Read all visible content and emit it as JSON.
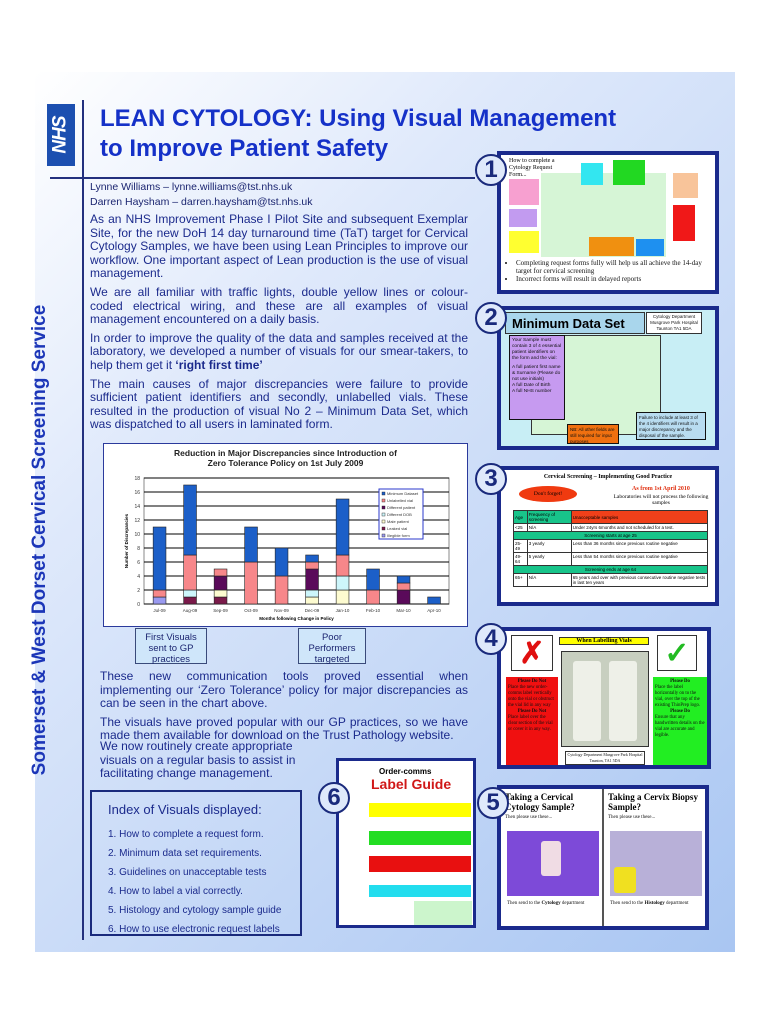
{
  "logo": "NHS",
  "side_title": "Somerset & West Dorset Cervical Screening Service",
  "title_line1": "LEAN CYTOLOGY:  Using Visual Management",
  "title_line2": "to Improve Patient Safety",
  "authors": [
    "Lynne Williams    – lynne.williams@tst.nhs.uk",
    "Darren Haysham – darren.haysham@tst.nhs.uk"
  ],
  "paragraphs": [
    "As an NHS Improvement Phase I Pilot Site and subsequent Exemplar Site, for the new DoH 14 day turnaround time (TaT) target for Cervical Cytology Samples, we have been using Lean Principles to improve our workflow. One important aspect of Lean production is the use of visual management.",
    "We are all familiar with traffic lights, double yellow lines or colour-coded electrical wiring, and these are all  examples of visual management encountered on a daily basis.",
    "In order to improve the quality of the data and samples received at the laboratory,  we developed a number of visuals for our smear-takers, to help them get it ",
    "The main causes of major discrepancies were failure to provide sufficient patient identifiers and secondly, unlabelled vials. These resulted in the production of visual No 2 – Minimum Data Set, which was dispatched to all users in laminated form."
  ],
  "emphasis": "‘right first time’",
  "chart_data": {
    "type": "bar",
    "stacked": true,
    "title": "Reduction in Major Discrepancies since Introduction of Zero Tolerance Policy on 1st July 2009",
    "xlabel": "Months following Change in Policy",
    "ylabel": "Number of Discrepancies",
    "ylim": [
      0,
      18
    ],
    "yticks": [
      0,
      2,
      4,
      6,
      8,
      10,
      12,
      14,
      16,
      18
    ],
    "grid": true,
    "legend_placement": "top-right",
    "categories": [
      "Jul-09",
      "Aug-09",
      "Sep-09",
      "Oct-09",
      "Nov-09",
      "Dec-09",
      "Jan-10",
      "Feb-10",
      "Mar-10",
      "Apr-10"
    ],
    "series": [
      {
        "name": "Illegible form",
        "color": "#9a9af0",
        "values": [
          1,
          0,
          0,
          0,
          0,
          0,
          0,
          0,
          0,
          0
        ]
      },
      {
        "name": "Leaked vial",
        "color": "#7a1a4a",
        "values": [
          0,
          1,
          1,
          0,
          0,
          0,
          0,
          0,
          0,
          0
        ]
      },
      {
        "name": "Male patient",
        "color": "#fdfbd0",
        "values": [
          0,
          0,
          1,
          0,
          0,
          1,
          2,
          0,
          0,
          0
        ]
      },
      {
        "name": "Different DOB",
        "color": "#cdf6fb",
        "values": [
          0,
          1,
          0,
          0,
          0,
          1,
          2,
          0,
          0,
          0
        ]
      },
      {
        "name": "Different patient",
        "color": "#5a0a5a",
        "values": [
          0,
          0,
          2,
          0,
          0,
          3,
          0,
          0,
          2,
          0
        ]
      },
      {
        "name": "Unlabelled vial",
        "color": "#f7878a",
        "values": [
          1,
          5,
          1,
          6,
          4,
          1,
          3,
          2,
          1,
          0
        ]
      },
      {
        "name": "Minimum Dataset",
        "color": "#1c5fc8",
        "values": [
          9,
          10,
          0,
          5,
          4,
          1,
          8,
          3,
          1,
          1
        ]
      }
    ],
    "legend_order": [
      "Minimum Dataset",
      "Unlabelled vial",
      "Different patient",
      "Different DOB",
      "Male patient",
      "Leaked vial",
      "Illegible form"
    ]
  },
  "callouts": {
    "first": "First Visuals sent to GP practices",
    "poor": "Poor Performers targeted"
  },
  "paragraphs2": [
    "These new communication tools proved essential when implementing our ‘Zero Tolerance’ policy  for major discrepancies as can be seen in the chart above.",
    "The visuals have proved popular with our GP practices, so we have made them available for download on the Trust Pathology website.",
    "We now routinely create appropriate visuals on a regular basis to assist in facilitating change management."
  ],
  "index": {
    "title": "Index of Visuals displayed:",
    "items": [
      "1.  How to complete a request form.",
      "2.  Minimum data set requirements.",
      "3.  Guidelines on unacceptable tests",
      "4.  How to label a vial correctly.",
      "5.  Histology and cytology sample guide",
      "6.  How to use electronic request labels"
    ]
  },
  "visuals": {
    "v1": {
      "num": "1",
      "title": "How to complete a Cytology Request Form...",
      "bullets": [
        "Completing request forms fully will help us all achieve the 14-day target for cervical screening",
        "Incorrect forms will result in delayed reports"
      ]
    },
    "v2": {
      "num": "2",
      "title": "Minimum Data Set",
      "dept": "Cytology Department Musgrove Park Hospital Taunton TA1 5DA",
      "purple": "Your Sample must contain 3 of 4 essential patient identifiers on the form and the vial:",
      "items": [
        "A full patient first name & Surname (Please do not use initials)",
        "A full Date of Birth",
        "A full NHS number"
      ],
      "nb": "NB: All other fields are still required for input purposes",
      "fail": "Failure to include at least 3 of the 4 identifiers will result in a major discrepancy and the disposal of the sample."
    },
    "v3": {
      "num": "3",
      "title": "Cervical Screening – Implementing Good Practice",
      "dont": "Don't forget!",
      "from": "As from 1st April 2010",
      "labs": "Laboratories will not process the following samples",
      "headers": [
        "Age",
        "Frequency of screening",
        "Unacceptable samples"
      ],
      "rows": [
        [
          "<25",
          "N/A",
          "Under 24yrs 6months and not scheduled for a test."
        ],
        [
          "Screening starts at age 25"
        ],
        [
          "25-49",
          "3 yearly",
          "Less than 36 months since previous routine negative"
        ],
        [
          "49-64",
          "5 yearly",
          "Less than 54 months since previous routine negative"
        ],
        [
          "Screening ends at age 64"
        ],
        [
          "65+",
          "N/A",
          "65 years and over with previous consecutive routine negative tests in last ten years"
        ]
      ]
    },
    "v4": {
      "num": "4",
      "title": "When Labelling Vials",
      "dont": [
        "Please Do Not",
        "Place the new order-comms label vertically onto the vial or obstruct the vial lid in any way",
        "Please Do Not",
        "Place label over the clear section of the vial or cover it in any way."
      ],
      "do": [
        "Please Do",
        "Place the label horizontally on to the vial, over the top of the existing ThinPrep logo.",
        "Please Do",
        "Ensure that any handwritten details on the vial are accurate and legible."
      ],
      "dept": "Cytology Department Musgrove Park Hospital Taunton, TA1 5DA"
    },
    "v5": {
      "num": "5",
      "left_title": "Taking a Cervical Cytology Sample?",
      "right_title": "Taking a Cervix Biopsy Sample?",
      "sub": "Then please use these...",
      "left_send_pre": "Then send to the ",
      "left_send_b": "Cytology",
      "right_send_b": "Histology",
      "send_post": " department"
    },
    "v6": {
      "num": "6",
      "brand": "Order-comms",
      "title": "Label Guide"
    }
  },
  "colors": {
    "accent": "#1531c8",
    "text": "#1b2a8c",
    "frame": "#1a2a8c"
  }
}
